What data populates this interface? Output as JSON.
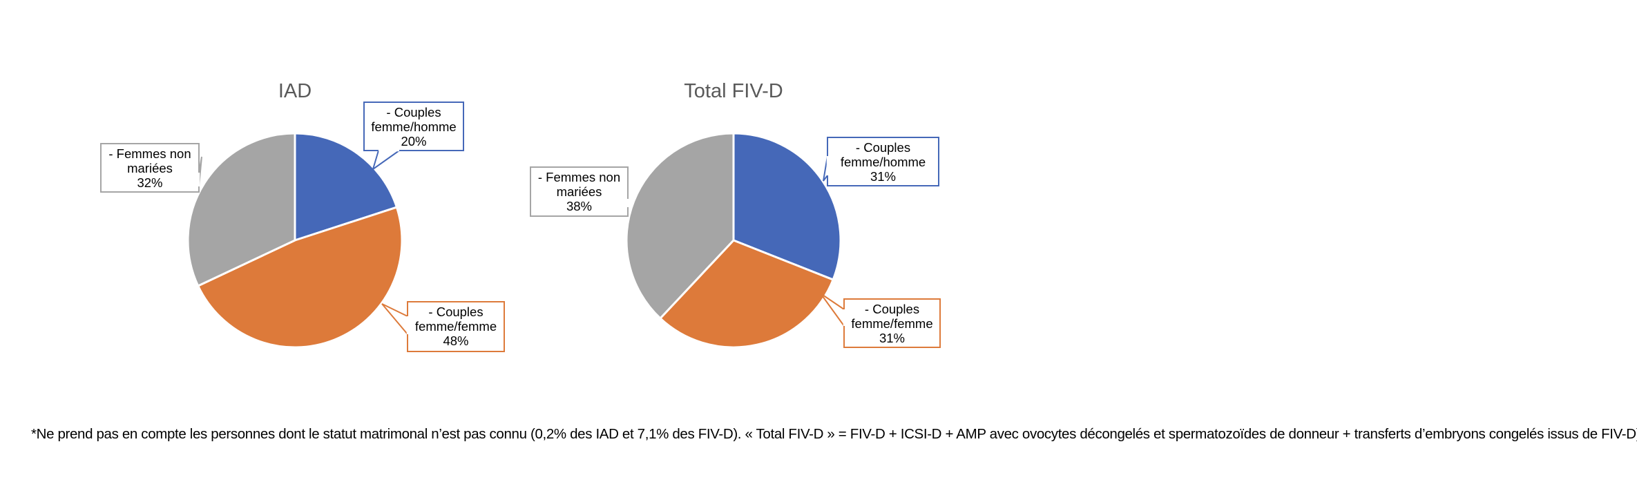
{
  "chart_data": [
    {
      "type": "pie",
      "title": "IAD",
      "slices": [
        {
          "label_lines": [
            "- Couples",
            "femme/homme",
            "20%"
          ],
          "value": 20,
          "color": "#4568B8"
        },
        {
          "label_lines": [
            "- Couples",
            "femme/femme",
            "48%"
          ],
          "value": 48,
          "color": "#DD7A3A"
        },
        {
          "label_lines": [
            "- Femmes non",
            "mariées",
            "32%"
          ],
          "value": 32,
          "color": "#A5A5A5"
        }
      ]
    },
    {
      "type": "pie",
      "title": "Total FIV-D",
      "slices": [
        {
          "label_lines": [
            "- Couples",
            "femme/homme",
            "31%"
          ],
          "value": 31,
          "color": "#4568B8"
        },
        {
          "label_lines": [
            "- Couples",
            "femme/femme",
            "31%"
          ],
          "value": 31,
          "color": "#DD7A3A"
        },
        {
          "label_lines": [
            "- Femmes non",
            "mariées",
            "38%"
          ],
          "value": 38,
          "color": "#A5A5A5"
        }
      ]
    }
  ],
  "footnote": "*Ne prend pas en compte les personnes dont le statut matrimonal n’est pas connu (0,2% des IAD et 7,1% des FIV-D). « Total FIV-D » = FIV-D + ICSI-D + AMP avec ovocytes décongelés et spermatozoïdes de donneur + transferts d’embryons congelés issus de FIV-D)"
}
